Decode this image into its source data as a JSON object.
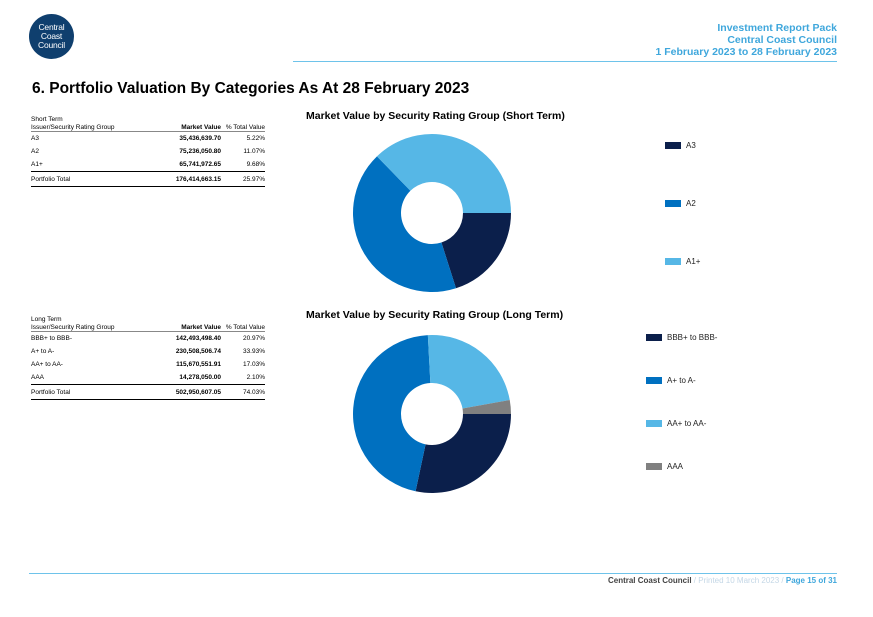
{
  "logo": {
    "lines": [
      "Central",
      "Coast",
      "Council"
    ]
  },
  "header": {
    "line1": "Investment Report Pack",
    "line2": "Central Coast Council",
    "line3": "1 February 2023 to 28 February 2023"
  },
  "page_title": "6. Portfolio Valuation By Categories As At 28 February 2023",
  "short_term_table": {
    "caption_line1": "Short Term",
    "caption_line2": "Issuer/Security Rating Group",
    "col_market_value": "Market Value",
    "col_pct": "% Total Value",
    "rows": [
      {
        "group": "A3",
        "value": "35,436,639.70",
        "pct": "5.22%"
      },
      {
        "group": "A2",
        "value": "75,236,050.80",
        "pct": "11.07%"
      },
      {
        "group": "A1+",
        "value": "65,741,972.65",
        "pct": "9.68%"
      }
    ],
    "total": {
      "label": "Portfolio Total",
      "value": "176,414,663.15",
      "pct": "25.97%"
    }
  },
  "long_term_table": {
    "caption_line1": "Long Term",
    "caption_line2": "Issuer/Security Rating Group",
    "col_market_value": "Market Value",
    "col_pct": "% Total Value",
    "rows": [
      {
        "group": "BBB+ to BBB-",
        "value": "142,493,498.40",
        "pct": "20.97%"
      },
      {
        "group": "A+ to A-",
        "value": "230,508,506.74",
        "pct": "33.93%"
      },
      {
        "group": "AA+ to AA-",
        "value": "115,670,551.91",
        "pct": "17.03%"
      },
      {
        "group": "AAA",
        "value": "14,278,050.00",
        "pct": "2.10%"
      }
    ],
    "total": {
      "label": "Portfolio Total",
      "value": "502,950,607.05",
      "pct": "74.03%"
    }
  },
  "chart_data": [
    {
      "type": "pie",
      "title": "Market Value by Security Rating Group (Short Term)",
      "categories": [
        "A3",
        "A2",
        "A1+"
      ],
      "values": [
        35436639.7,
        75236050.8,
        65741972.65
      ],
      "colors": [
        "#0b1f4b",
        "#0070c0",
        "#56b7e6"
      ],
      "legend": "right"
    },
    {
      "type": "pie",
      "title": "Market Value by Security Rating Group (Long Term)",
      "categories": [
        "BBB+ to BBB-",
        "A+ to A-",
        "AA+ to AA-",
        "AAA"
      ],
      "values": [
        142493498.4,
        230508506.74,
        115670551.91,
        14278050.0
      ],
      "colors": [
        "#0b1f4b",
        "#0070c0",
        "#56b7e6",
        "#808080"
      ],
      "legend": "right"
    }
  ],
  "footer": {
    "org": "Central Coast Council",
    "printed": "Printed 10 March 2023",
    "page": "Page 15 of 31"
  }
}
